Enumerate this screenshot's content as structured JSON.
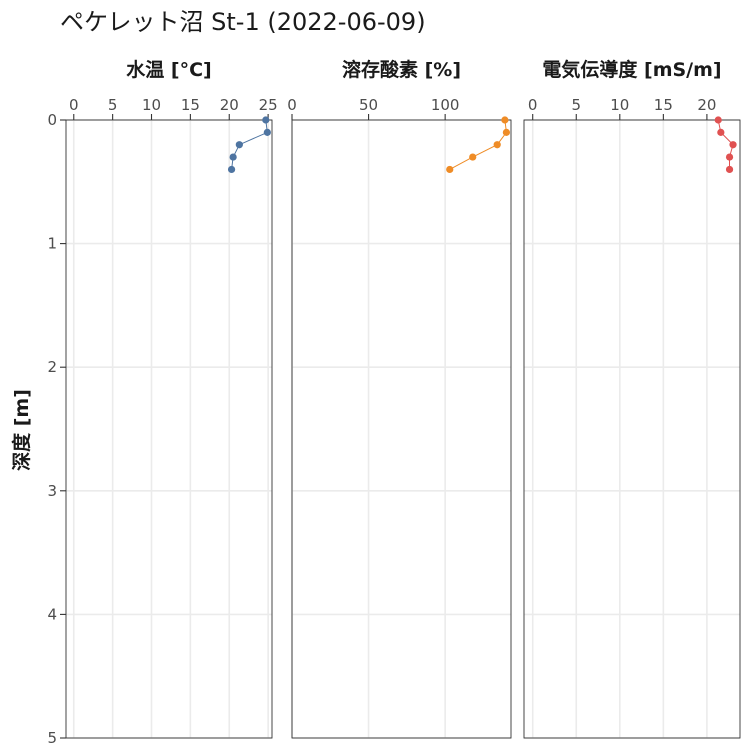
{
  "chart_data": {
    "type": "line",
    "title": "ペケレット沼 St-1 (2022-06-09)",
    "ylabel": "深度 [m]",
    "ylim": [
      0,
      5
    ],
    "yticks": [
      0,
      1,
      2,
      3,
      4,
      5
    ],
    "y_reversed": true,
    "grid": true,
    "panels": [
      {
        "name": "水温 [°C]",
        "color": "#4e74a1",
        "xlim": [
          -1,
          25.5
        ],
        "xticks": [
          0,
          5,
          10,
          15,
          20,
          25
        ],
        "points": [
          {
            "x": 24.7,
            "depth": 0.0
          },
          {
            "x": 24.9,
            "depth": 0.1
          },
          {
            "x": 21.3,
            "depth": 0.2
          },
          {
            "x": 20.5,
            "depth": 0.3
          },
          {
            "x": 20.3,
            "depth": 0.4
          }
        ]
      },
      {
        "name": "溶存酸素 [%]",
        "color": "#ef8c26",
        "xlim": [
          0,
          143
        ],
        "xticks": [
          0,
          50,
          100
        ],
        "points": [
          {
            "x": 139,
            "depth": 0.0
          },
          {
            "x": 140,
            "depth": 0.1
          },
          {
            "x": 134,
            "depth": 0.2
          },
          {
            "x": 118,
            "depth": 0.3
          },
          {
            "x": 103,
            "depth": 0.4
          }
        ]
      },
      {
        "name": "電気伝導度 [mS/m]",
        "color": "#e05151",
        "xlim": [
          -1,
          23.8
        ],
        "xticks": [
          0,
          5,
          10,
          15,
          20
        ],
        "points": [
          {
            "x": 21.3,
            "depth": 0.0
          },
          {
            "x": 21.6,
            "depth": 0.1
          },
          {
            "x": 23.0,
            "depth": 0.2
          },
          {
            "x": 22.6,
            "depth": 0.3
          },
          {
            "x": 22.6,
            "depth": 0.4
          }
        ]
      }
    ]
  }
}
